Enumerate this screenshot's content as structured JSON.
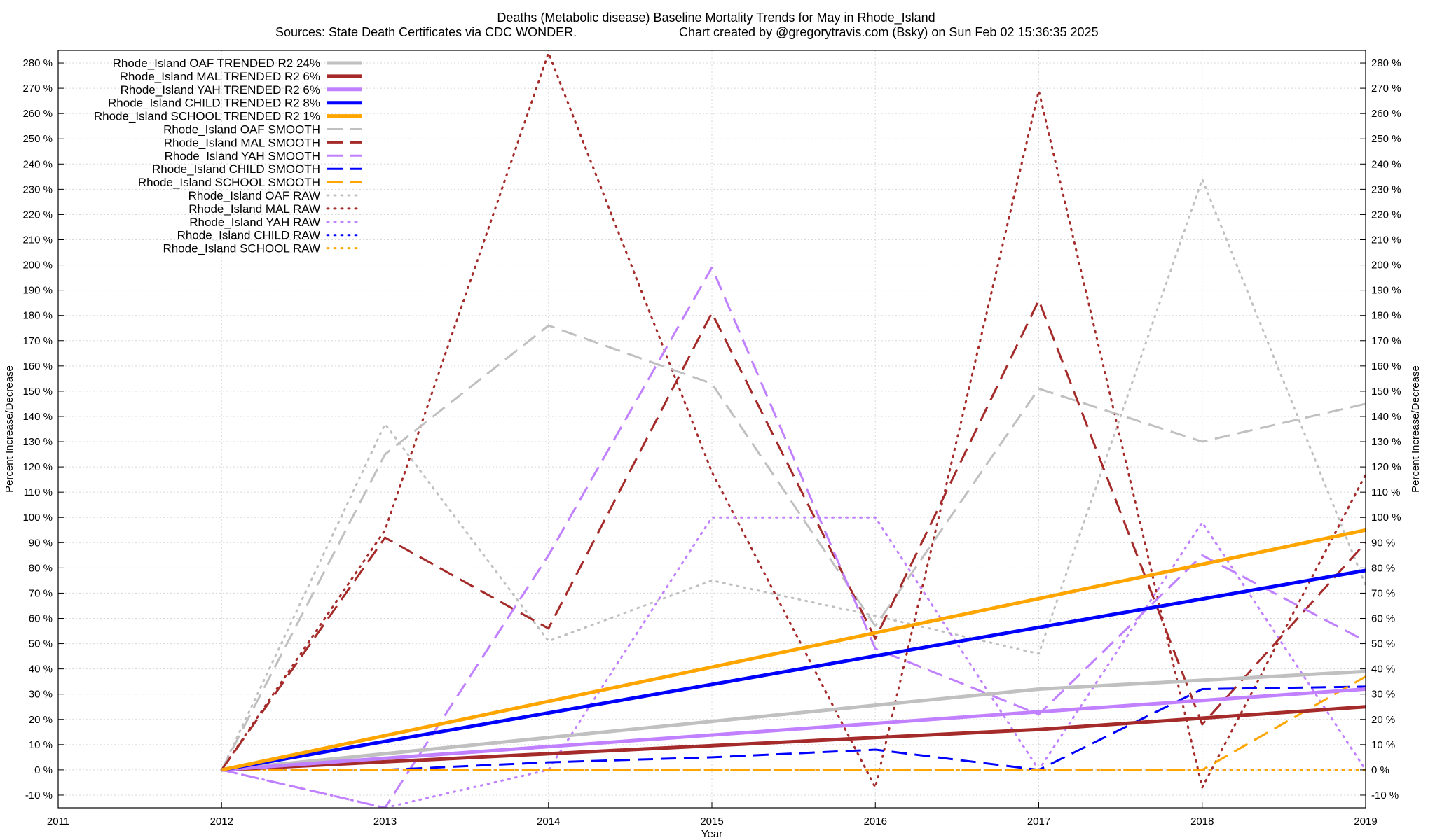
{
  "chart_data": {
    "type": "line",
    "title": "Deaths (Metabolic disease)  Baseline Mortality Trends for May in Rhode_Island",
    "subtitle_left": "Sources: State Death Certificates via CDC WONDER.",
    "subtitle_right": "Chart created by @gregorytravis.com (Bsky) on Sun Feb 02 15:36:35 2025",
    "xlabel": "Year",
    "ylabel": "Percent Increase/Decrease",
    "ylabel_right": "Percent Increase/Decrease",
    "xlim": [
      2011,
      2019
    ],
    "ylim": [
      -15,
      285
    ],
    "x_ticks": [
      "2011",
      "2012",
      "2013",
      "2014",
      "2015",
      "2016",
      "2017",
      "2018",
      "2019"
    ],
    "y_ticks": [
      "-10 %",
      "0 %",
      "10 %",
      "20 %",
      "30 %",
      "40 %",
      "50 %",
      "60 %",
      "70 %",
      "80 %",
      "90 %",
      "100 %",
      "110 %",
      "120 %",
      "130 %",
      "140 %",
      "150 %",
      "160 %",
      "170 %",
      "180 %",
      "190 %",
      "200 %",
      "210 %",
      "220 %",
      "230 %",
      "240 %",
      "250 %",
      "260 %",
      "270 %",
      "280 %"
    ],
    "grid": true,
    "legend_position": "top-left",
    "series": [
      {
        "name": "Rhode_Island OAF TRENDED R2  24%",
        "color": "#c0c0c0",
        "style": "solid",
        "x": [
          2012,
          2017,
          2019
        ],
        "y": [
          0,
          32,
          39
        ]
      },
      {
        "name": "Rhode_Island MAL TRENDED R2   6%",
        "color": "#a52a2a",
        "style": "solid",
        "x": [
          2012,
          2017,
          2019
        ],
        "y": [
          0,
          16,
          25
        ]
      },
      {
        "name": "Rhode_Island YAH TRENDED R2   6%",
        "color": "#c080ff",
        "style": "solid",
        "x": [
          2012,
          2017,
          2019
        ],
        "y": [
          0,
          23,
          32
        ]
      },
      {
        "name": "Rhode_Island CHILD TRENDED R2   8%",
        "color": "#0000ff",
        "style": "solid",
        "x": [
          2012,
          2019
        ],
        "y": [
          0,
          79
        ]
      },
      {
        "name": "Rhode_Island SCHOOL TRENDED R2   1%",
        "color": "#ffa500",
        "style": "solid",
        "x": [
          2012,
          2019
        ],
        "y": [
          0,
          95
        ]
      },
      {
        "name": "Rhode_Island OAF SMOOTH",
        "color": "#c0c0c0",
        "style": "dashed",
        "x": [
          2012,
          2013,
          2014,
          2015,
          2016,
          2017,
          2018,
          2019
        ],
        "y": [
          0,
          125,
          176,
          153,
          57,
          151,
          130,
          145
        ]
      },
      {
        "name": "Rhode_Island MAL SMOOTH",
        "color": "#a52a2a",
        "style": "dashed",
        "x": [
          2012,
          2013,
          2014,
          2015,
          2016,
          2017,
          2018,
          2019
        ],
        "y": [
          0,
          92,
          56,
          181,
          52,
          186,
          18,
          90
        ]
      },
      {
        "name": "Rhode_Island YAH SMOOTH",
        "color": "#c080ff",
        "style": "dashed",
        "x": [
          2012,
          2013,
          2014,
          2015,
          2016,
          2017,
          2018,
          2019
        ],
        "y": [
          0,
          -15,
          85,
          199,
          48,
          22,
          85,
          51
        ]
      },
      {
        "name": "Rhode_Island CHILD SMOOTH",
        "color": "#0000ff",
        "style": "dashed",
        "x": [
          2012,
          2013,
          2014,
          2015,
          2016,
          2017,
          2018,
          2019
        ],
        "y": [
          0,
          0,
          3,
          5,
          8,
          0,
          32,
          33
        ]
      },
      {
        "name": "Rhode_Island SCHOOL SMOOTH",
        "color": "#ffa500",
        "style": "dashed",
        "x": [
          2012,
          2013,
          2014,
          2015,
          2016,
          2017,
          2018,
          2019
        ],
        "y": [
          0,
          0,
          0,
          0,
          0,
          0,
          0,
          37
        ]
      },
      {
        "name": "Rhode_Island OAF RAW",
        "color": "#c0c0c0",
        "style": "dotted",
        "x": [
          2012,
          2013,
          2014,
          2015,
          2016,
          2017,
          2018,
          2019
        ],
        "y": [
          0,
          137,
          51,
          75,
          61,
          46,
          234,
          73
        ]
      },
      {
        "name": "Rhode_Island MAL RAW",
        "color": "#a52a2a",
        "style": "dotted",
        "x": [
          2012,
          2013,
          2014,
          2015,
          2016,
          2017,
          2018,
          2019
        ],
        "y": [
          0,
          95,
          284,
          118,
          -7,
          269,
          -7,
          117
        ]
      },
      {
        "name": "Rhode_Island YAH RAW",
        "color": "#c080ff",
        "style": "dotted",
        "x": [
          2012,
          2013,
          2014,
          2015,
          2016,
          2017,
          2018,
          2019
        ],
        "y": [
          0,
          -15,
          0,
          100,
          100,
          0,
          98,
          0
        ]
      },
      {
        "name": "Rhode_Island CHILD RAW",
        "color": "#0000ff",
        "style": "dotted",
        "x": [
          2012,
          2019
        ],
        "y": [
          0,
          0
        ]
      },
      {
        "name": "Rhode_Island SCHOOL RAW",
        "color": "#ffa500",
        "style": "dotted",
        "x": [
          2012,
          2013,
          2014,
          2015,
          2016,
          2017,
          2018,
          2019
        ],
        "y": [
          0,
          0,
          0,
          0,
          0,
          0,
          0,
          0
        ]
      }
    ]
  }
}
